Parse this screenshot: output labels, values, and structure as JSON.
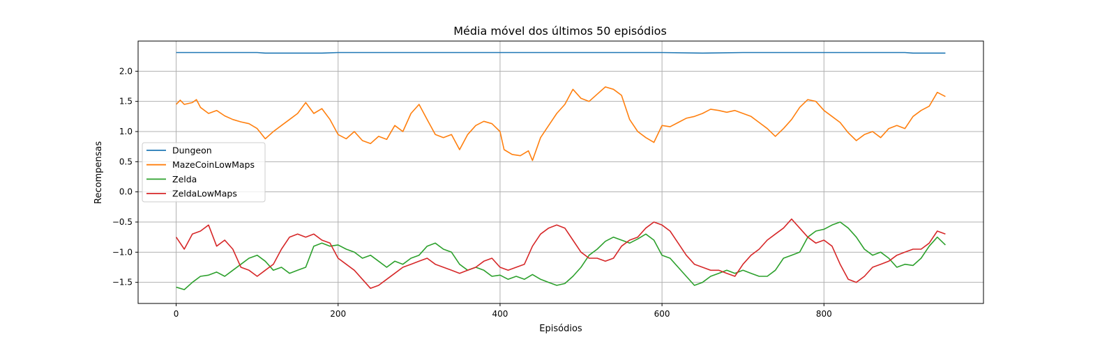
{
  "chart_data": {
    "type": "line",
    "title": "Média móvel dos últimos 50 episódios",
    "xlabel": "Episódios",
    "ylabel": "Recompensas",
    "xlim": [
      -47,
      997
    ],
    "ylim": [
      -1.85,
      2.5
    ],
    "xticks": [
      0,
      200,
      400,
      600,
      800
    ],
    "yticks": [
      -1.5,
      -1.0,
      -0.5,
      0.0,
      0.5,
      1.0,
      1.5,
      2.0
    ],
    "xtick_labels": [
      "0",
      "200",
      "400",
      "600",
      "800"
    ],
    "ytick_labels": [
      "−1.5",
      "−1.0",
      "−0.5",
      "0.0",
      "0.5",
      "1.0",
      "1.5",
      "2.0"
    ],
    "grid": true,
    "legend_position": "center-left",
    "series": [
      {
        "name": "Dungeon",
        "color": "#1f77b4",
        "points": [
          [
            0,
            2.31
          ],
          [
            100,
            2.31
          ],
          [
            110,
            2.3
          ],
          [
            180,
            2.3
          ],
          [
            200,
            2.31
          ],
          [
            300,
            2.31
          ],
          [
            400,
            2.31
          ],
          [
            500,
            2.31
          ],
          [
            600,
            2.31
          ],
          [
            650,
            2.3
          ],
          [
            700,
            2.31
          ],
          [
            800,
            2.31
          ],
          [
            900,
            2.31
          ],
          [
            910,
            2.3
          ],
          [
            950,
            2.3
          ]
        ]
      },
      {
        "name": "MazeCoinLowMaps",
        "color": "#ff7f0e",
        "points": [
          [
            0,
            1.45
          ],
          [
            5,
            1.52
          ],
          [
            10,
            1.45
          ],
          [
            20,
            1.48
          ],
          [
            25,
            1.53
          ],
          [
            30,
            1.4
          ],
          [
            40,
            1.3
          ],
          [
            50,
            1.35
          ],
          [
            60,
            1.26
          ],
          [
            70,
            1.2
          ],
          [
            80,
            1.16
          ],
          [
            90,
            1.13
          ],
          [
            100,
            1.05
          ],
          [
            110,
            0.88
          ],
          [
            120,
            1.0
          ],
          [
            130,
            1.1
          ],
          [
            140,
            1.2
          ],
          [
            150,
            1.3
          ],
          [
            160,
            1.48
          ],
          [
            170,
            1.3
          ],
          [
            180,
            1.38
          ],
          [
            190,
            1.2
          ],
          [
            200,
            0.95
          ],
          [
            210,
            0.88
          ],
          [
            220,
            1.0
          ],
          [
            230,
            0.85
          ],
          [
            240,
            0.8
          ],
          [
            250,
            0.92
          ],
          [
            260,
            0.87
          ],
          [
            270,
            1.1
          ],
          [
            280,
            1.0
          ],
          [
            290,
            1.3
          ],
          [
            300,
            1.45
          ],
          [
            310,
            1.2
          ],
          [
            320,
            0.95
          ],
          [
            330,
            0.9
          ],
          [
            340,
            0.95
          ],
          [
            350,
            0.7
          ],
          [
            360,
            0.95
          ],
          [
            370,
            1.1
          ],
          [
            380,
            1.17
          ],
          [
            390,
            1.13
          ],
          [
            400,
            1.0
          ],
          [
            405,
            0.7
          ],
          [
            415,
            0.62
          ],
          [
            425,
            0.6
          ],
          [
            435,
            0.68
          ],
          [
            440,
            0.52
          ],
          [
            450,
            0.9
          ],
          [
            460,
            1.1
          ],
          [
            470,
            1.3
          ],
          [
            480,
            1.45
          ],
          [
            490,
            1.7
          ],
          [
            500,
            1.55
          ],
          [
            510,
            1.5
          ],
          [
            520,
            1.62
          ],
          [
            530,
            1.74
          ],
          [
            540,
            1.7
          ],
          [
            550,
            1.6
          ],
          [
            560,
            1.2
          ],
          [
            570,
            1.0
          ],
          [
            580,
            0.9
          ],
          [
            590,
            0.82
          ],
          [
            600,
            1.1
          ],
          [
            610,
            1.08
          ],
          [
            620,
            1.15
          ],
          [
            630,
            1.22
          ],
          [
            640,
            1.25
          ],
          [
            650,
            1.3
          ],
          [
            660,
            1.37
          ],
          [
            670,
            1.35
          ],
          [
            680,
            1.32
          ],
          [
            690,
            1.35
          ],
          [
            700,
            1.3
          ],
          [
            710,
            1.25
          ],
          [
            720,
            1.15
          ],
          [
            730,
            1.05
          ],
          [
            740,
            0.92
          ],
          [
            750,
            1.05
          ],
          [
            760,
            1.2
          ],
          [
            770,
            1.4
          ],
          [
            780,
            1.53
          ],
          [
            790,
            1.5
          ],
          [
            800,
            1.35
          ],
          [
            810,
            1.25
          ],
          [
            820,
            1.15
          ],
          [
            830,
            0.98
          ],
          [
            840,
            0.85
          ],
          [
            850,
            0.95
          ],
          [
            860,
            1.0
          ],
          [
            870,
            0.9
          ],
          [
            880,
            1.05
          ],
          [
            890,
            1.1
          ],
          [
            900,
            1.05
          ],
          [
            910,
            1.25
          ],
          [
            920,
            1.35
          ],
          [
            930,
            1.42
          ],
          [
            940,
            1.65
          ],
          [
            950,
            1.58
          ]
        ]
      },
      {
        "name": "Zelda",
        "color": "#2ca02c",
        "points": [
          [
            0,
            -1.58
          ],
          [
            10,
            -1.62
          ],
          [
            20,
            -1.5
          ],
          [
            30,
            -1.4
          ],
          [
            40,
            -1.38
          ],
          [
            50,
            -1.33
          ],
          [
            60,
            -1.4
          ],
          [
            70,
            -1.3
          ],
          [
            80,
            -1.2
          ],
          [
            90,
            -1.1
          ],
          [
            100,
            -1.05
          ],
          [
            110,
            -1.15
          ],
          [
            120,
            -1.3
          ],
          [
            130,
            -1.25
          ],
          [
            140,
            -1.35
          ],
          [
            150,
            -1.3
          ],
          [
            160,
            -1.25
          ],
          [
            170,
            -0.9
          ],
          [
            180,
            -0.85
          ],
          [
            190,
            -0.9
          ],
          [
            200,
            -0.88
          ],
          [
            210,
            -0.95
          ],
          [
            220,
            -1.0
          ],
          [
            230,
            -1.1
          ],
          [
            240,
            -1.05
          ],
          [
            250,
            -1.15
          ],
          [
            260,
            -1.25
          ],
          [
            270,
            -1.15
          ],
          [
            280,
            -1.2
          ],
          [
            290,
            -1.1
          ],
          [
            300,
            -1.05
          ],
          [
            310,
            -0.9
          ],
          [
            320,
            -0.85
          ],
          [
            330,
            -0.95
          ],
          [
            340,
            -1.0
          ],
          [
            350,
            -1.2
          ],
          [
            360,
            -1.3
          ],
          [
            370,
            -1.25
          ],
          [
            380,
            -1.3
          ],
          [
            390,
            -1.4
          ],
          [
            400,
            -1.38
          ],
          [
            410,
            -1.45
          ],
          [
            420,
            -1.4
          ],
          [
            430,
            -1.45
          ],
          [
            440,
            -1.37
          ],
          [
            450,
            -1.45
          ],
          [
            460,
            -1.5
          ],
          [
            470,
            -1.55
          ],
          [
            480,
            -1.52
          ],
          [
            490,
            -1.4
          ],
          [
            500,
            -1.25
          ],
          [
            510,
            -1.05
          ],
          [
            520,
            -0.95
          ],
          [
            530,
            -0.82
          ],
          [
            540,
            -0.75
          ],
          [
            550,
            -0.8
          ],
          [
            560,
            -0.85
          ],
          [
            570,
            -0.78
          ],
          [
            580,
            -0.7
          ],
          [
            590,
            -0.8
          ],
          [
            600,
            -1.05
          ],
          [
            610,
            -1.1
          ],
          [
            620,
            -1.25
          ],
          [
            630,
            -1.4
          ],
          [
            640,
            -1.55
          ],
          [
            650,
            -1.5
          ],
          [
            660,
            -1.4
          ],
          [
            670,
            -1.35
          ],
          [
            680,
            -1.3
          ],
          [
            690,
            -1.35
          ],
          [
            700,
            -1.3
          ],
          [
            710,
            -1.35
          ],
          [
            720,
            -1.4
          ],
          [
            730,
            -1.4
          ],
          [
            740,
            -1.3
          ],
          [
            750,
            -1.1
          ],
          [
            760,
            -1.05
          ],
          [
            770,
            -1.0
          ],
          [
            780,
            -0.75
          ],
          [
            790,
            -0.65
          ],
          [
            800,
            -0.62
          ],
          [
            810,
            -0.55
          ],
          [
            820,
            -0.5
          ],
          [
            830,
            -0.6
          ],
          [
            840,
            -0.75
          ],
          [
            850,
            -0.95
          ],
          [
            860,
            -1.05
          ],
          [
            870,
            -1.0
          ],
          [
            880,
            -1.1
          ],
          [
            890,
            -1.25
          ],
          [
            900,
            -1.2
          ],
          [
            910,
            -1.22
          ],
          [
            920,
            -1.1
          ],
          [
            930,
            -0.9
          ],
          [
            940,
            -0.75
          ],
          [
            950,
            -0.88
          ]
        ]
      },
      {
        "name": "ZeldaLowMaps",
        "color": "#d62728",
        "points": [
          [
            0,
            -0.75
          ],
          [
            10,
            -0.95
          ],
          [
            20,
            -0.7
          ],
          [
            30,
            -0.65
          ],
          [
            40,
            -0.55
          ],
          [
            50,
            -0.9
          ],
          [
            60,
            -0.8
          ],
          [
            70,
            -0.95
          ],
          [
            80,
            -1.25
          ],
          [
            90,
            -1.3
          ],
          [
            100,
            -1.4
          ],
          [
            110,
            -1.3
          ],
          [
            120,
            -1.2
          ],
          [
            130,
            -0.95
          ],
          [
            140,
            -0.75
          ],
          [
            150,
            -0.7
          ],
          [
            160,
            -0.75
          ],
          [
            170,
            -0.7
          ],
          [
            180,
            -0.8
          ],
          [
            190,
            -0.85
          ],
          [
            200,
            -1.1
          ],
          [
            210,
            -1.2
          ],
          [
            220,
            -1.3
          ],
          [
            230,
            -1.45
          ],
          [
            240,
            -1.6
          ],
          [
            250,
            -1.55
          ],
          [
            260,
            -1.45
          ],
          [
            270,
            -1.35
          ],
          [
            280,
            -1.25
          ],
          [
            290,
            -1.2
          ],
          [
            300,
            -1.15
          ],
          [
            310,
            -1.1
          ],
          [
            320,
            -1.2
          ],
          [
            330,
            -1.25
          ],
          [
            340,
            -1.3
          ],
          [
            350,
            -1.35
          ],
          [
            360,
            -1.3
          ],
          [
            370,
            -1.25
          ],
          [
            380,
            -1.15
          ],
          [
            390,
            -1.1
          ],
          [
            400,
            -1.25
          ],
          [
            410,
            -1.3
          ],
          [
            420,
            -1.25
          ],
          [
            430,
            -1.2
          ],
          [
            440,
            -0.9
          ],
          [
            450,
            -0.7
          ],
          [
            460,
            -0.6
          ],
          [
            470,
            -0.55
          ],
          [
            480,
            -0.6
          ],
          [
            490,
            -0.8
          ],
          [
            500,
            -1.0
          ],
          [
            510,
            -1.1
          ],
          [
            520,
            -1.1
          ],
          [
            530,
            -1.15
          ],
          [
            540,
            -1.1
          ],
          [
            550,
            -0.9
          ],
          [
            560,
            -0.8
          ],
          [
            570,
            -0.75
          ],
          [
            580,
            -0.6
          ],
          [
            590,
            -0.5
          ],
          [
            600,
            -0.55
          ],
          [
            610,
            -0.65
          ],
          [
            620,
            -0.85
          ],
          [
            630,
            -1.05
          ],
          [
            640,
            -1.2
          ],
          [
            650,
            -1.25
          ],
          [
            660,
            -1.3
          ],
          [
            670,
            -1.3
          ],
          [
            680,
            -1.35
          ],
          [
            690,
            -1.4
          ],
          [
            700,
            -1.2
          ],
          [
            710,
            -1.05
          ],
          [
            720,
            -0.95
          ],
          [
            730,
            -0.8
          ],
          [
            740,
            -0.7
          ],
          [
            750,
            -0.6
          ],
          [
            760,
            -0.45
          ],
          [
            770,
            -0.6
          ],
          [
            780,
            -0.75
          ],
          [
            790,
            -0.85
          ],
          [
            800,
            -0.8
          ],
          [
            810,
            -0.9
          ],
          [
            820,
            -1.2
          ],
          [
            830,
            -1.45
          ],
          [
            840,
            -1.5
          ],
          [
            850,
            -1.4
          ],
          [
            860,
            -1.25
          ],
          [
            870,
            -1.2
          ],
          [
            880,
            -1.15
          ],
          [
            890,
            -1.05
          ],
          [
            900,
            -1.0
          ],
          [
            910,
            -0.95
          ],
          [
            920,
            -0.95
          ],
          [
            930,
            -0.85
          ],
          [
            940,
            -0.65
          ],
          [
            950,
            -0.7
          ]
        ]
      }
    ]
  }
}
